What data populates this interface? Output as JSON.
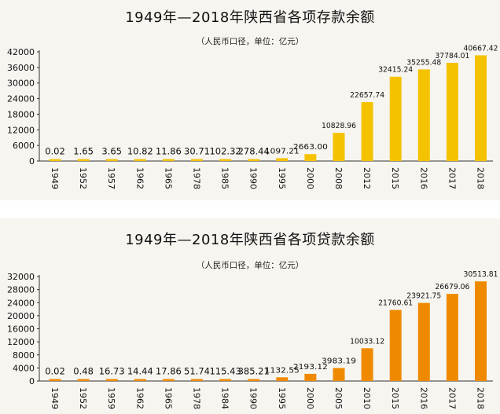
{
  "chart_data": [
    {
      "type": "bar",
      "title": "1949年—2018年陕西省各项存款余额",
      "subtitle": "（人民币口径，单位：亿元）",
      "categories": [
        "1949",
        "1952",
        "1957",
        "1962",
        "1965",
        "1978",
        "1985",
        "1990",
        "1995",
        "2000",
        "2008",
        "2012",
        "2015",
        "2016",
        "2017",
        "2018"
      ],
      "values": [
        0.02,
        1.65,
        3.65,
        10.82,
        11.86,
        30.71,
        102.32,
        278.44,
        1097.21,
        2663.0,
        10828.96,
        22657.74,
        32415.24,
        35255.48,
        37784.01,
        40667.42
      ],
      "value_labels": [
        "0.02",
        "1.65",
        "3.65",
        "10.82",
        "11.86",
        "30.71",
        "102.32",
        "278.44",
        "1097.21",
        "2663.00",
        "10828.96",
        "22657.74",
        "32415.24",
        "35255.48",
        "37784.01",
        "40667.42"
      ],
      "yticks": [
        "0",
        "6000",
        "12000",
        "18000",
        "24000",
        "30000",
        "36000",
        "42000"
      ],
      "ylim": [
        0,
        42000
      ],
      "color": "#f5c200",
      "grid": false
    },
    {
      "type": "bar",
      "title": "1949年—2018年陕西省各项贷款余额",
      "subtitle": "（人民币口径，单位：亿元）",
      "categories": [
        "1949",
        "1952",
        "1959",
        "1962",
        "1965",
        "1978",
        "1984",
        "1990",
        "1995",
        "2000",
        "2005",
        "2010",
        "2015",
        "2016",
        "2017",
        "2018"
      ],
      "values": [
        0.02,
        0.48,
        16.73,
        14.44,
        17.86,
        51.74,
        115.43,
        385.21,
        1132.55,
        2193.12,
        3983.19,
        10033.12,
        21760.61,
        23921.75,
        26679.06,
        30513.81
      ],
      "value_labels": [
        "0.02",
        "0.48",
        "16.73",
        "14.44",
        "17.86",
        "51.74",
        "115.43",
        "385.21",
        "1132.55",
        "2193.12",
        "3983.19",
        "10033.12",
        "21760.61",
        "23921.75",
        "26679.06",
        "30513.81"
      ],
      "yticks": [
        "0",
        "4000",
        "8000",
        "12000",
        "16000",
        "20000",
        "24000",
        "28000",
        "32000"
      ],
      "ylim": [
        0,
        32000
      ],
      "color": "#ef8a00",
      "grid": false
    }
  ]
}
